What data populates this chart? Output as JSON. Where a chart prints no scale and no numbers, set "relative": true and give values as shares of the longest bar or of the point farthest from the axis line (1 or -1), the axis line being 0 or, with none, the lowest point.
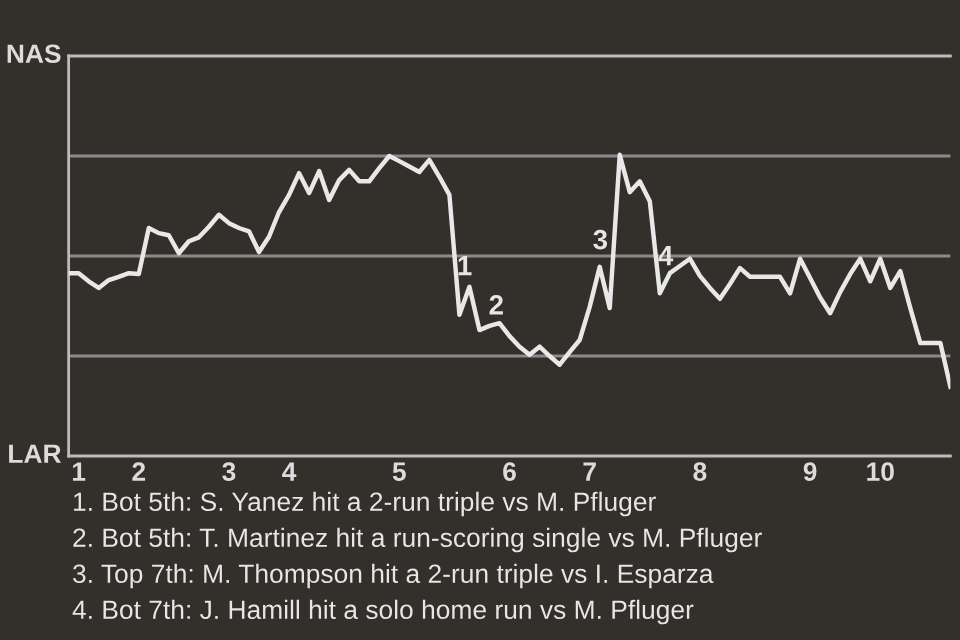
{
  "chart_data": {
    "type": "line",
    "relative": true,
    "categories": [
      null,
      "1",
      null,
      null,
      null,
      null,
      null,
      "2",
      null,
      null,
      null,
      null,
      null,
      null,
      null,
      null,
      "3",
      null,
      null,
      null,
      null,
      null,
      "4",
      null,
      null,
      null,
      null,
      null,
      null,
      null,
      null,
      null,
      null,
      "5",
      null,
      null,
      null,
      null,
      null,
      null,
      null,
      null,
      null,
      null,
      "6",
      null,
      null,
      null,
      null,
      null,
      null,
      null,
      "7",
      null,
      null,
      null,
      null,
      null,
      null,
      null,
      null,
      null,
      null,
      "8",
      null,
      null,
      null,
      null,
      null,
      null,
      null,
      null,
      null,
      null,
      "9",
      null,
      null,
      null,
      null,
      null,
      null,
      "10",
      null,
      null,
      null,
      null,
      null,
      null,
      null
    ],
    "series": [
      {
        "color": "#e8e8e8",
        "values": [
          0.607,
          0.607,
          0.58,
          0.558,
          0.584,
          0.595,
          0.607,
          0.604,
          0.757,
          0.74,
          0.733,
          0.673,
          0.713,
          0.726,
          0.761,
          0.801,
          0.773,
          0.757,
          0.746,
          0.677,
          0.728,
          0.81,
          0.867,
          0.939,
          0.873,
          0.946,
          0.85,
          0.916,
          0.95,
          0.912,
          0.912,
          0.956,
          0.996,
          0.979,
          0.961,
          0.943,
          0.983,
          0.927,
          0.867,
          0.469,
          0.562,
          0.418,
          0.432,
          0.441,
          0.398,
          0.363,
          0.336,
          0.363,
          0.332,
          0.303,
          0.345,
          0.385,
          0.495,
          0.628,
          0.491,
          1,
          0.876,
          0.912,
          0.846,
          0.54,
          0.607,
          0.631,
          0.655,
          0.598,
          0.558,
          0.522,
          0.571,
          0.624,
          0.595,
          0.595,
          0.595,
          0.595,
          0.54,
          0.655,
          0.591,
          0.526,
          0.474,
          0.544,
          0.604,
          0.655,
          0.58,
          0.655,
          0.558,
          0.614,
          0.491,
          0.375,
          0.375,
          0.375,
          0.23
        ]
      }
    ],
    "ref_lines": [
      {
        "axis": "y",
        "value": 0.332,
        "color": "#8a8a8a"
      },
      {
        "axis": "y",
        "value": 0.664,
        "color": "#8a8a8a"
      },
      {
        "axis": "y",
        "value": 0.996,
        "color": "#8a8a8a"
      }
    ],
    "annotations": [
      "NAS",
      "LAR",
      "1",
      "2",
      "3",
      "4",
      "1. Bot 5th: S. Yanez hit a 2-run triple vs M. Pfluger",
      "2. Bot 5th: T. Martinez hit a run-scoring single vs M. Pfluger",
      "3. Top 7th: M. Thompson hit a 2-run triple vs I. Esparza",
      "4. Bot 7th: J. Hamill hit a solo home run vs M. Pfluger"
    ],
    "line_style": "solid"
  }
}
